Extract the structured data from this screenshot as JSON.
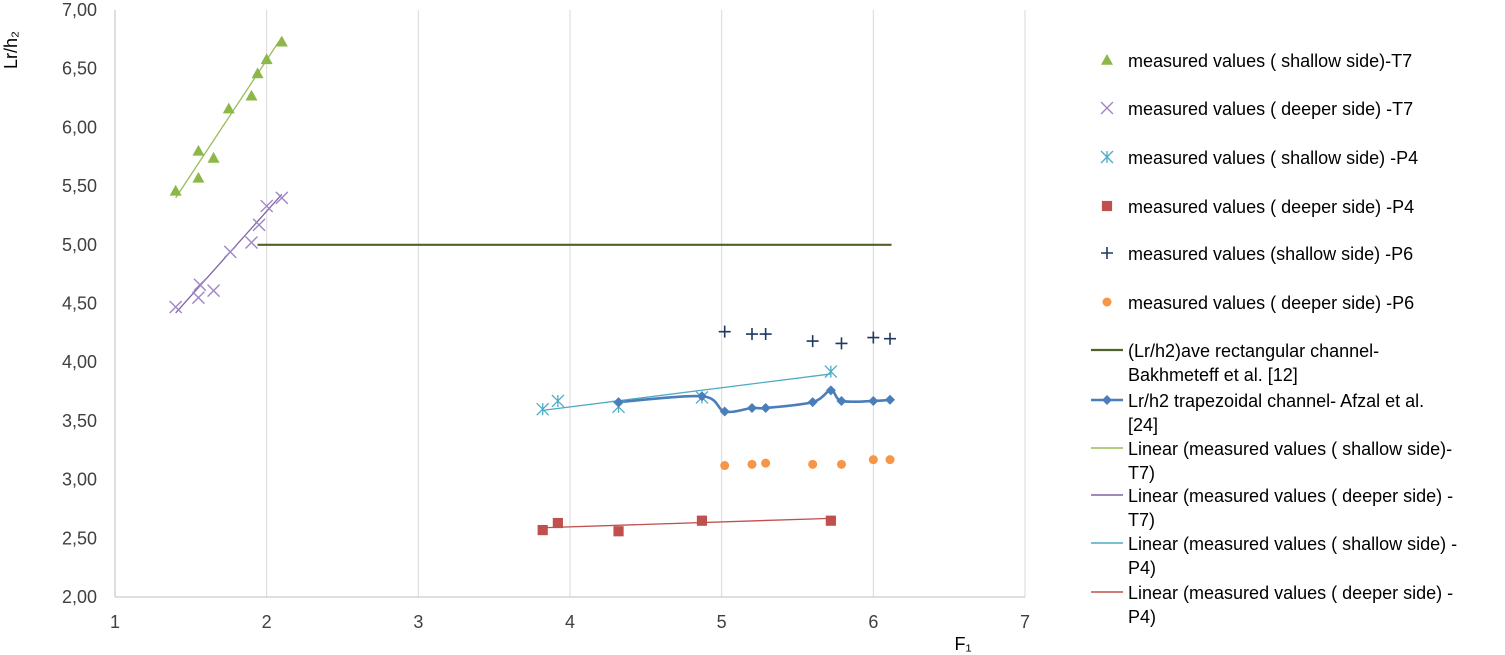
{
  "chart_data": {
    "type": "scatter",
    "xlabel": "F₁",
    "ylabel": "Lr/h₂",
    "xlim": [
      1,
      7
    ],
    "ylim": [
      2.0,
      7.0
    ],
    "x_ticks": [
      "1",
      "2",
      "3",
      "4",
      "5",
      "6",
      "7"
    ],
    "y_ticks": [
      "2,00",
      "2,50",
      "3,00",
      "3,50",
      "4,00",
      "4,50",
      "5,00",
      "5,50",
      "6,00",
      "6,50",
      "7,00"
    ],
    "grid": "vertical",
    "legend_position": "right",
    "series": [
      {
        "name": "measured values ( shallow side)-T7",
        "marker": "triangle",
        "color": "#8CB84A",
        "x": [
          1.4,
          1.55,
          1.55,
          1.65,
          1.75,
          1.9,
          1.94,
          2.0,
          2.1
        ],
        "y": [
          5.46,
          5.57,
          5.8,
          5.74,
          6.16,
          6.27,
          6.46,
          6.58,
          6.73
        ]
      },
      {
        "name": "measured values ( deeper side) -T7",
        "marker": "x",
        "color": "#9E86C8",
        "x": [
          1.4,
          1.55,
          1.56,
          1.65,
          1.76,
          1.9,
          1.95,
          2.0,
          2.1
        ],
        "y": [
          4.47,
          4.55,
          4.66,
          4.61,
          4.94,
          5.02,
          5.17,
          5.33,
          5.4
        ]
      },
      {
        "name": "measured values ( shallow side) -P4",
        "marker": "asterisk",
        "color": "#4BACC6",
        "x": [
          3.82,
          3.92,
          4.32,
          4.87,
          5.72
        ],
        "y": [
          3.6,
          3.67,
          3.62,
          3.7,
          3.92
        ]
      },
      {
        "name": "measured values ( deeper side) -P4",
        "marker": "square",
        "color": "#C0504D",
        "x": [
          3.82,
          3.92,
          4.32,
          4.87,
          5.72
        ],
        "y": [
          2.57,
          2.63,
          2.56,
          2.65,
          2.65
        ]
      },
      {
        "name": "measured values (shallow side) -P6",
        "marker": "plus",
        "color": "#1F3864",
        "x": [
          5.02,
          5.2,
          5.29,
          5.6,
          5.79,
          6.0,
          6.11
        ],
        "y": [
          4.26,
          4.24,
          4.24,
          4.18,
          4.16,
          4.21,
          4.2
        ]
      },
      {
        "name": "measured values ( deeper side) -P6",
        "marker": "circle",
        "color": "#F79646",
        "x": [
          5.02,
          5.2,
          5.29,
          5.6,
          5.79,
          6.0,
          6.11
        ],
        "y": [
          3.12,
          3.13,
          3.14,
          3.13,
          3.13,
          3.17,
          3.17
        ]
      },
      {
        "name": "(Lr/h2)ave rectangular channel- Bakhmeteff et al. [12]",
        "marker": "none",
        "line": "solid",
        "color": "#4F6228",
        "x": [
          1.94,
          6.12
        ],
        "y": [
          5.0,
          5.0
        ]
      },
      {
        "name": "Lr/h2 trapezoidal channel- Afzal et al. [24]",
        "marker": "diamond",
        "line": "smooth",
        "color": "#4A7EBB",
        "x": [
          4.32,
          4.87,
          5.02,
          5.2,
          5.29,
          5.6,
          5.72,
          5.79,
          6.0,
          6.11
        ],
        "y": [
          3.66,
          3.71,
          3.58,
          3.61,
          3.61,
          3.66,
          3.76,
          3.67,
          3.67,
          3.68
        ]
      },
      {
        "name": "Linear (measured values ( shallow side)- T7)",
        "marker": "none",
        "line": "trend",
        "color": "#9BBB59",
        "x": [
          1.4,
          2.1
        ],
        "y": [
          5.4,
          6.77
        ]
      },
      {
        "name": "Linear (measured values ( deeper side) - T7)",
        "marker": "none",
        "line": "trend",
        "color": "#8064A2",
        "x": [
          1.4,
          2.1
        ],
        "y": [
          4.42,
          5.43
        ]
      },
      {
        "name": "Linear (measured values ( shallow side) - P4)",
        "marker": "none",
        "line": "trend",
        "color": "#4BACC6",
        "x": [
          3.82,
          5.72
        ],
        "y": [
          3.59,
          3.9
        ]
      },
      {
        "name": "Linear (measured values ( deeper side) - P4)",
        "marker": "none",
        "line": "trend",
        "color": "#C0504D",
        "x": [
          3.82,
          5.72
        ],
        "y": [
          2.59,
          2.67
        ]
      }
    ]
  },
  "legend": [
    {
      "lines": [
        "measured values ( shallow side)-T7"
      ],
      "symbol": "triangle",
      "color": "#8CB84A"
    },
    {
      "lines": [
        "measured values ( deeper side) -T7"
      ],
      "symbol": "x",
      "color": "#9E86C8"
    },
    {
      "lines": [
        "measured values ( shallow side) -P4"
      ],
      "symbol": "asterisk",
      "color": "#4BACC6"
    },
    {
      "lines": [
        "measured values ( deeper side) -P4"
      ],
      "symbol": "square",
      "color": "#C0504D"
    },
    {
      "lines": [
        "measured values (shallow side) -P6"
      ],
      "symbol": "plus",
      "color": "#1F3864"
    },
    {
      "lines": [
        "measured values ( deeper side) -P6"
      ],
      "symbol": "circle",
      "color": "#F79646"
    },
    {
      "lines": [
        "(Lr/h2)ave rectangular channel-",
        "Bakhmeteff et al. [12]"
      ],
      "symbol": "line",
      "color": "#4F6228"
    },
    {
      "lines": [
        "Lr/h2 trapezoidal channel- Afzal et al.",
        "[24]"
      ],
      "symbol": "line-diamond",
      "color": "#4A7EBB"
    },
    {
      "lines": [
        "Linear (measured values ( shallow side)-",
        "T7)"
      ],
      "symbol": "thin-line",
      "color": "#9BBB59"
    },
    {
      "lines": [
        "Linear (measured values ( deeper side) -",
        "T7)"
      ],
      "symbol": "thin-line",
      "color": "#8064A2"
    },
    {
      "lines": [
        "Linear (measured values ( shallow side) -",
        "P4)"
      ],
      "symbol": "thin-line",
      "color": "#4BACC6"
    },
    {
      "lines": [
        "Linear (measured values ( deeper side) -",
        "P4)"
      ],
      "symbol": "thin-line",
      "color": "#C0504D"
    }
  ]
}
